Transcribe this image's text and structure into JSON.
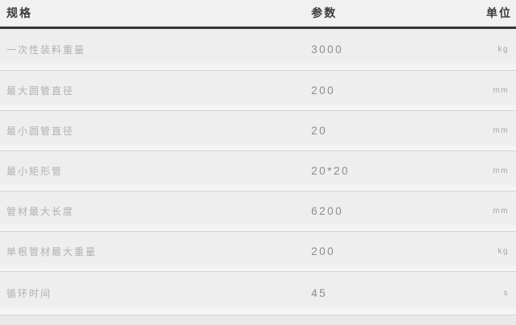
{
  "table": {
    "headers": {
      "spec": "规格",
      "param": "参数",
      "unit": "单位"
    },
    "rows": [
      {
        "label": "一次性装料重量",
        "value": "3000",
        "unit": "kg"
      },
      {
        "label": "最大圆管直径",
        "value": "200",
        "unit": "mm"
      },
      {
        "label": "最小圆管直径",
        "value": "20",
        "unit": "mm"
      },
      {
        "label": "最小矩形管",
        "value": "20*20",
        "unit": "mm"
      },
      {
        "label": "管材最大长度",
        "value": "6200",
        "unit": "mm"
      },
      {
        "label": "单根管材最大重量",
        "value": "200",
        "unit": "kg"
      },
      {
        "label": "循环时间",
        "value": "45",
        "unit": "s"
      }
    ]
  },
  "colors": {
    "table_background": "#efefef",
    "header_text": "#3b3b3b",
    "header_rule": "#383838",
    "row_divider": "#d3d3d3",
    "label_text": "#b1b1b1",
    "value_text": "#8b8b8b",
    "unit_text": "#a5a5a5"
  }
}
